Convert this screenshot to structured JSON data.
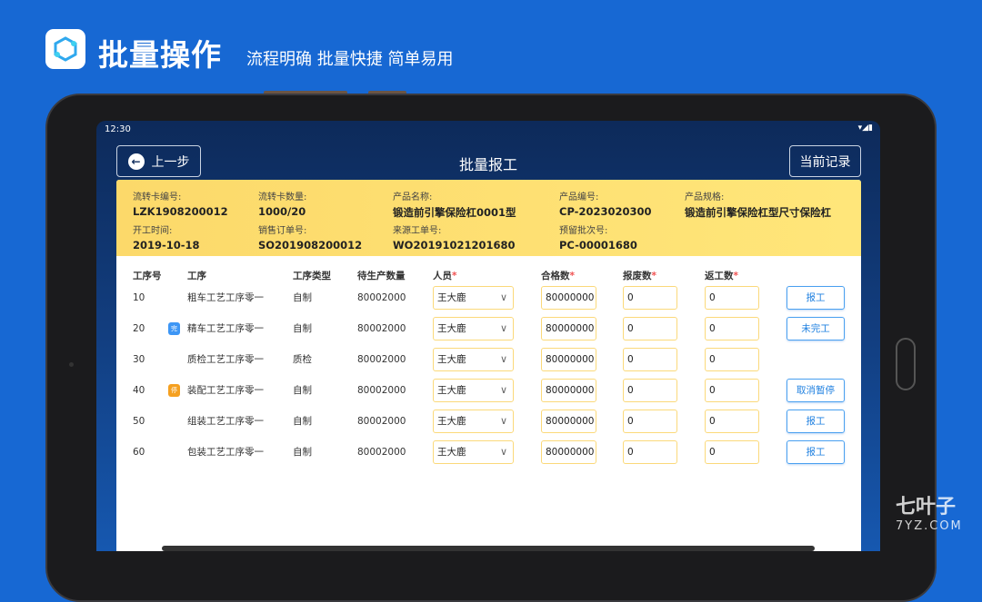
{
  "promo": {
    "title": "批量操作",
    "subtitle": "流程明确 批量快捷 简单易用"
  },
  "status_bar": {
    "time": "12:30",
    "icons": "▾◢▮"
  },
  "header": {
    "back_label": "上一步",
    "title": "批量报工",
    "records_label": "当前记录"
  },
  "info": [
    {
      "label": "流转卡编号:",
      "value": "LZK1908200012"
    },
    {
      "label": "流转卡数量:",
      "value": "1000/20"
    },
    {
      "label": "产品名称:",
      "value": "锻造前引擎保险杠0001型"
    },
    {
      "label": "产品编号:",
      "value": "CP-2023020300"
    },
    {
      "label": "产品规格:",
      "value": "锻造前引擎保险杠型尺寸保险杠"
    },
    {
      "label": "开工时间:",
      "value": "2019-10-18"
    },
    {
      "label": "销售订单号:",
      "value": "SO201908200012"
    },
    {
      "label": "来源工单号:",
      "value": "WO20191021201680"
    },
    {
      "label": "预留批次号:",
      "value": "PC-00001680"
    }
  ],
  "table": {
    "headers": {
      "no": "工序号",
      "proc": "工序",
      "type": "工序类型",
      "pending": "待生产数量",
      "person": "人员",
      "qualified": "合格数",
      "scrap": "报废数",
      "rework": "返工数"
    },
    "required_mark": "*",
    "rows": [
      {
        "no": "10",
        "badge": "",
        "proc": "粗车工艺工序零一",
        "type": "自制",
        "pending": "80002000",
        "person": "王大鹿",
        "qualified": "80000000",
        "scrap": "0",
        "rework": "0",
        "action": "报工"
      },
      {
        "no": "20",
        "badge": "完",
        "proc": "精车工艺工序零一",
        "type": "自制",
        "pending": "80002000",
        "person": "王大鹿",
        "qualified": "80000000",
        "scrap": "0",
        "rework": "0",
        "action": "未完工"
      },
      {
        "no": "30",
        "badge": "",
        "proc": "质检工艺工序零一",
        "type": "质检",
        "pending": "80002000",
        "person": "王大鹿",
        "qualified": "80000000",
        "scrap": "0",
        "rework": "0",
        "action": ""
      },
      {
        "no": "40",
        "badge": "停",
        "proc": "装配工艺工序零一",
        "type": "自制",
        "pending": "80002000",
        "person": "王大鹿",
        "qualified": "80000000",
        "scrap": "0",
        "rework": "0",
        "action": "取消暂停"
      },
      {
        "no": "50",
        "badge": "",
        "proc": "组装工艺工序零一",
        "type": "自制",
        "pending": "80002000",
        "person": "王大鹿",
        "qualified": "80000000",
        "scrap": "0",
        "rework": "0",
        "action": "报工"
      },
      {
        "no": "60",
        "badge": "",
        "proc": "包装工艺工序零一",
        "type": "自制",
        "pending": "80002000",
        "person": "王大鹿",
        "qualified": "80000000",
        "scrap": "0",
        "rework": "0",
        "action": "报工"
      }
    ]
  },
  "colors": {
    "background": "#1768d3",
    "info_bg": "#fde27a",
    "badge_done": "#3d96f5",
    "badge_pause": "#f5a020",
    "action": "#1f80e0"
  },
  "watermark": {
    "name": "七叶子",
    "domain": "7YZ.COM"
  }
}
